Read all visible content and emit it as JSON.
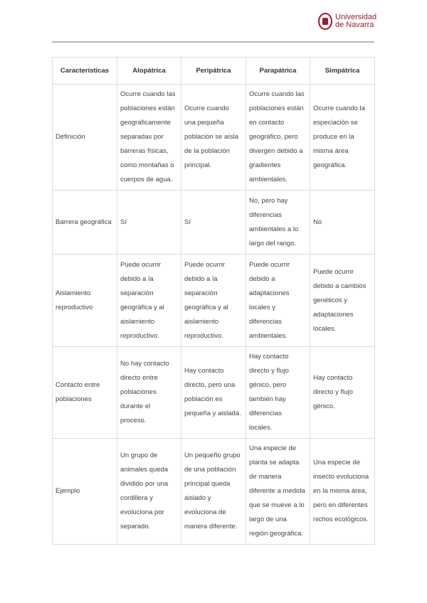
{
  "logo": {
    "line1": "Universidad",
    "line2": "de Navarra",
    "color": "#9b1c2e"
  },
  "table": {
    "headers": [
      "Características",
      "Alopátrica",
      "Peripátrica",
      "Parapátrica",
      "Simpátrica"
    ],
    "rows": [
      [
        "Definición",
        "Ocurre cuando las\npoblaciones están\ngeográficamente\nseparadas por\nbarreras físicas,\ncomo montañas o\ncuerpos de agua.",
        "Ocurre cuando\nuna pequeña\npoblación se aísla\nde la población\nprincipal.",
        "Ocurre cuando las\npoblaciones están\nen contacto\ngeográfico, pero\ndivergen debido a\ngradientes\nambientales.",
        "Ocurre cuando la\nespeciación se\nproduce en la\nmisma área\ngeográfica."
      ],
      [
        "Barrera geográfica",
        "Sí",
        "Sí",
        "No, pero hay\ndiferencias\nambientales a lo\nlargo del rango.",
        "No"
      ],
      [
        "Aislamiento\nreproductivo",
        "Puede ocurrir\ndebido a la\nseparación\ngeográfica y al\naislamiento\nreproductivo.",
        "Puede ocurrir\ndebido a la\nseparación\ngeográfica y al\naislamiento\nreproductivo.",
        "Puede ocurrir\ndebido a\nadaptaciones\nlocales y\ndiferencias\nambientales.",
        "Puede ocurrir\ndebido a cambios\ngenéticos y\nadaptaciones\nlocales."
      ],
      [
        "Contacto entre\npoblaciones",
        "No hay contacto\ndirecto entre\npoblaciones\ndurante el\nproceso.",
        "Hay contacto\ndirecto, pero una\npoblación es\npequeña y aislada.",
        "Hay contacto\ndirecto y flujo\ngénico, pero\ntambién hay\ndiferencias\nlocales.",
        "Hay contacto\ndirecto y flujo\ngénico."
      ],
      [
        "Ejemplo",
        "Un grupo de\nanimales queda\ndividido por una\ncordillera y\nevoluciona por\nseparado.",
        "Un pequeño grupo\nde una población\nprincipal queda\naislado y\nevoluciona de\nmanera diferente.",
        "Una especie de\nplanta se adapta\nde manera\ndiferente a medida\nque se mueve a lo\nlargo de una\nregión geográfica.",
        "Una especie de\ninsecto evoluciona\nen la misma área,\npero en diferentes\nnichos ecológicos."
      ]
    ]
  }
}
